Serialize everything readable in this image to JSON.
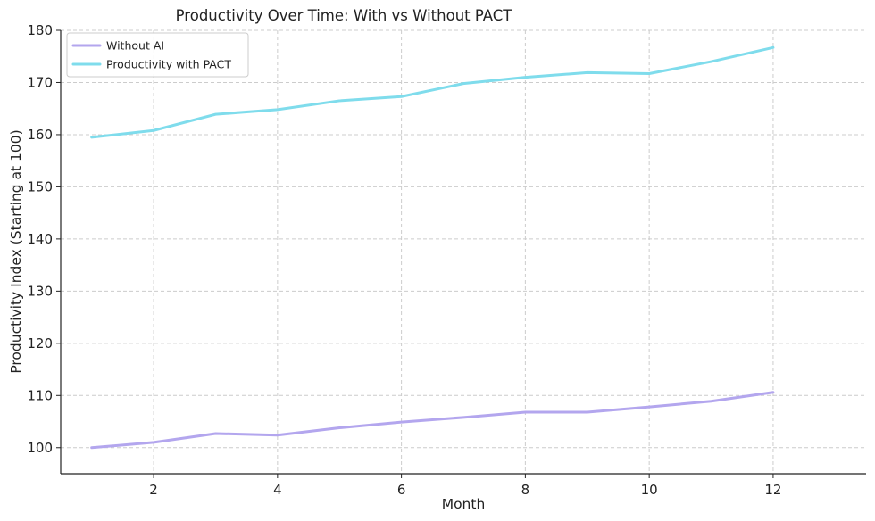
{
  "chart_data": {
    "type": "line",
    "title": "Productivity Over Time: With vs Without PACT",
    "xlabel": "Month",
    "ylabel": "Productivity Index (Starting at 100)",
    "xlim": [
      0.5,
      13.5
    ],
    "ylim": [
      95,
      180
    ],
    "xticks": [
      2,
      4,
      6,
      8,
      10,
      12
    ],
    "yticks": [
      100,
      110,
      120,
      130,
      140,
      150,
      160,
      170,
      180
    ],
    "grid": true,
    "legend_position": "top-left",
    "x": [
      1,
      2,
      3,
      4,
      5,
      6,
      7,
      8,
      9,
      10,
      11,
      12
    ],
    "series": [
      {
        "name": "Without AI",
        "color": "#b3a6ee",
        "values": [
          100,
          101,
          102.7,
          102.4,
          103.8,
          104.9,
          105.8,
          106.8,
          106.8,
          107.8,
          108.9,
          110.6
        ]
      },
      {
        "name": "Productivity with PACT",
        "color": "#7fdcec",
        "values": [
          159.5,
          160.8,
          163.9,
          164.8,
          166.5,
          167.3,
          169.8,
          171.0,
          171.9,
          171.7,
          174.0,
          176.7
        ]
      }
    ]
  }
}
